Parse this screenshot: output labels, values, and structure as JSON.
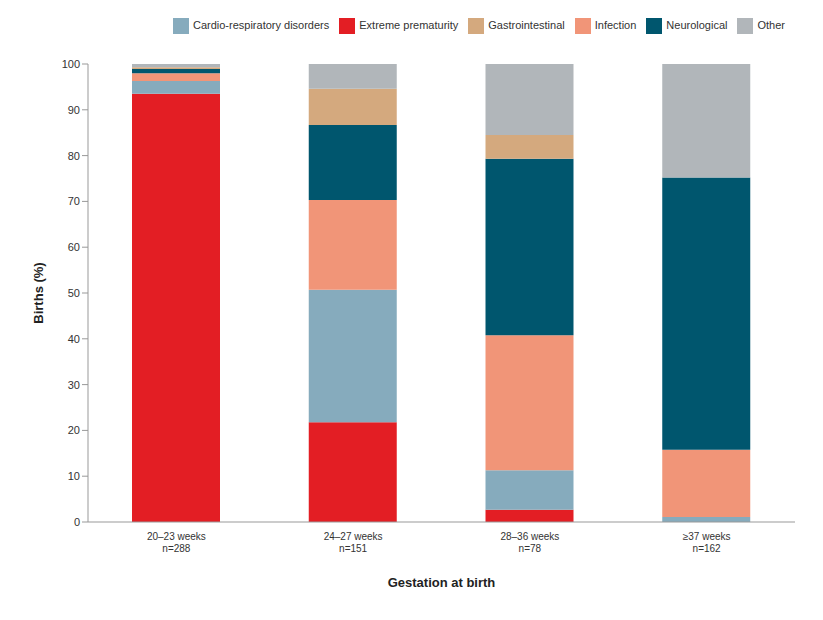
{
  "chart_data": {
    "type": "bar",
    "stacked": true,
    "x_label": "Gestation at birth",
    "y_label": "Births (%)",
    "categories": [
      "20–23 weeks\nn=288",
      "24–27 weeks\nn=151",
      "28–36 weeks\nn=78",
      "≥37 weeks\nn=162"
    ],
    "series": [
      {
        "name": "Extreme prematurity",
        "color": "#e31e24",
        "values": [
          93.5,
          21.8,
          2.7,
          0
        ]
      },
      {
        "name": "Cardio-respiratory disorders",
        "color": "#86abbd",
        "values": [
          2.8,
          28.9,
          8.6,
          1.1
        ]
      },
      {
        "name": "Infection",
        "color": "#f19578",
        "values": [
          1.7,
          19.6,
          29.5,
          14.7
        ]
      },
      {
        "name": "Neurological",
        "color": "#00566e",
        "values": [
          0.9,
          16.4,
          38.5,
          59.4
        ]
      },
      {
        "name": "Gastrointestinal",
        "color": "#d4a97e",
        "values": [
          0.4,
          7.9,
          5.2,
          0
        ]
      },
      {
        "name": "Other",
        "color": "#b1b6ba",
        "values": [
          0.7,
          5.4,
          15.5,
          24.8
        ]
      }
    ],
    "ylim": [
      0,
      100
    ],
    "yticks": [
      0,
      10,
      20,
      30,
      40,
      50,
      60,
      70,
      80,
      90,
      100
    ],
    "grid": false,
    "legend": "top"
  }
}
